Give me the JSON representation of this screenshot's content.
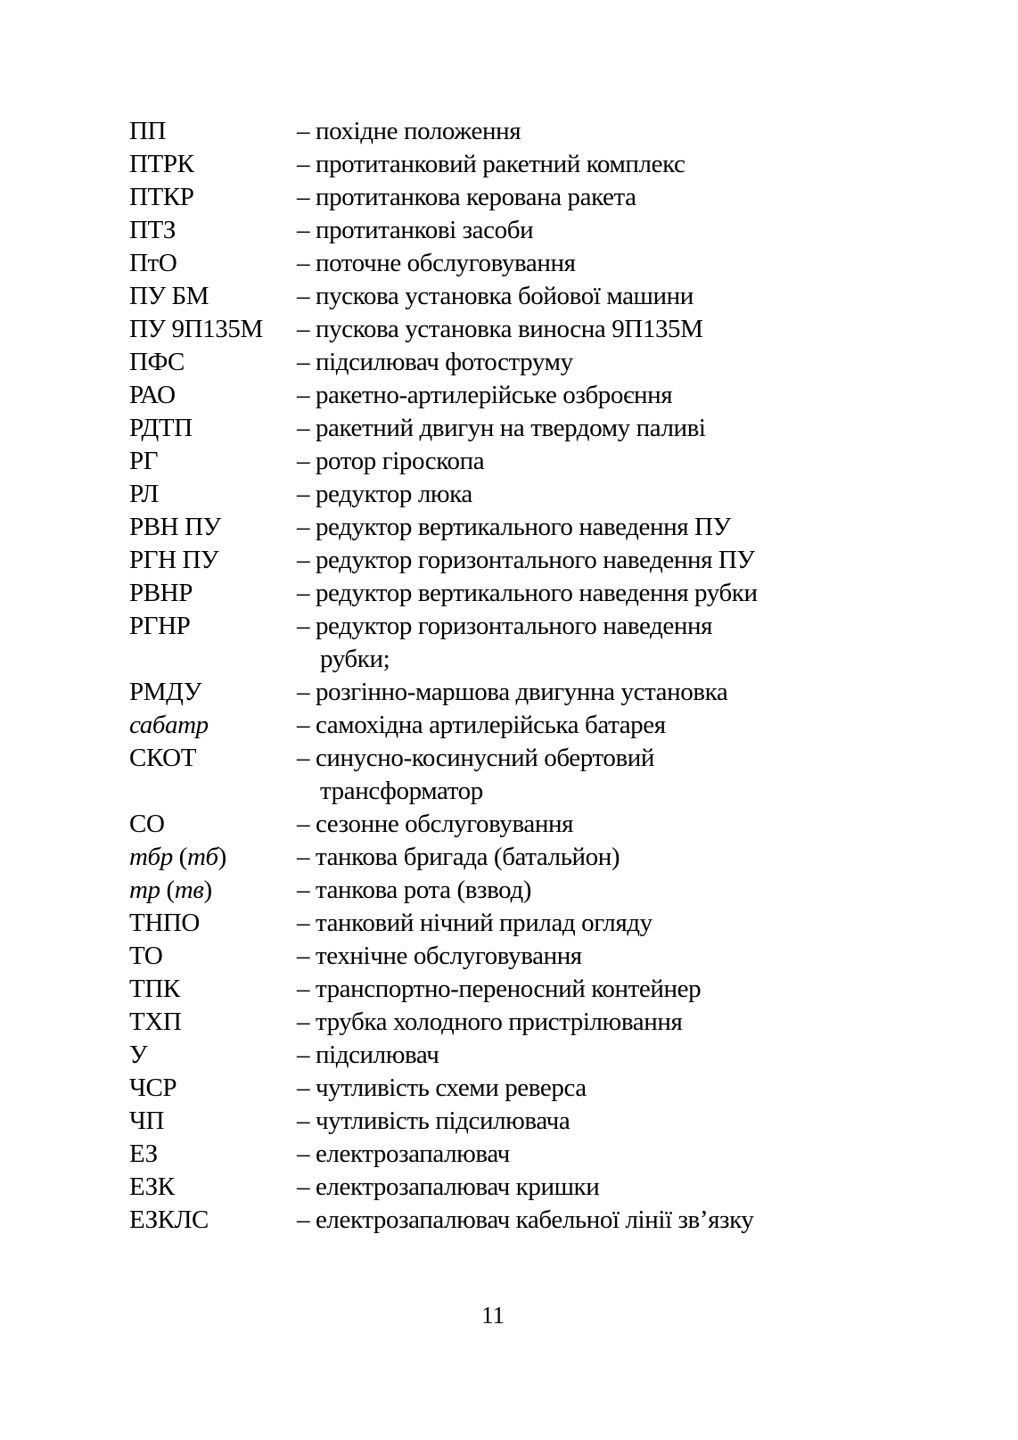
{
  "abbreviations": [
    {
      "abbr": [
        {
          "t": "ПП"
        }
      ],
      "def": [
        "– похідне положення"
      ]
    },
    {
      "abbr": [
        {
          "t": "ПТРК"
        }
      ],
      "def": [
        "– протитанковий ракетний комплекс"
      ]
    },
    {
      "abbr": [
        {
          "t": "ПТКР"
        }
      ],
      "def": [
        "– протитанкова керована ракета"
      ]
    },
    {
      "abbr": [
        {
          "t": "ПТЗ"
        }
      ],
      "def": [
        "– протитанкові засоби"
      ]
    },
    {
      "abbr": [
        {
          "t": "ПтО"
        }
      ],
      "def": [
        "– поточне обслуговування"
      ]
    },
    {
      "abbr": [
        {
          "t": "ПУ БМ"
        }
      ],
      "def": [
        "– пускова установка бойової машини"
      ]
    },
    {
      "abbr": [
        {
          "t": "ПУ 9П135М"
        }
      ],
      "def": [
        "– пускова установка виносна 9П135М"
      ]
    },
    {
      "abbr": [
        {
          "t": "ПФС"
        }
      ],
      "def": [
        "– підсилювач фотоструму"
      ]
    },
    {
      "abbr": [
        {
          "t": "РАО"
        }
      ],
      "def": [
        "– ракетно-артилерійське озброєння"
      ]
    },
    {
      "abbr": [
        {
          "t": "РДТП"
        }
      ],
      "def": [
        "– ракетний двигун на твердому паливі"
      ]
    },
    {
      "abbr": [
        {
          "t": "РГ"
        }
      ],
      "def": [
        "– ротор гіроскопа"
      ]
    },
    {
      "abbr": [
        {
          "t": "РЛ"
        }
      ],
      "def": [
        "– редуктор люка"
      ]
    },
    {
      "abbr": [
        {
          "t": "РВН ПУ"
        }
      ],
      "def": [
        "– редуктор вертикального наведення ПУ"
      ]
    },
    {
      "abbr": [
        {
          "t": "РГН ПУ"
        }
      ],
      "def": [
        "– редуктор горизонтального наведення ПУ"
      ]
    },
    {
      "abbr": [
        {
          "t": "РВНР"
        }
      ],
      "def": [
        "– редуктор вертикального наведення рубки"
      ]
    },
    {
      "abbr": [
        {
          "t": "РГНР"
        }
      ],
      "def": [
        "– редуктор горизонтального наведення",
        "рубки;"
      ]
    },
    {
      "abbr": [
        {
          "t": "РМДУ"
        }
      ],
      "def": [
        "– розгінно-маршова двигунна установка"
      ]
    },
    {
      "abbr": [
        {
          "t": "сабатр",
          "i": true
        }
      ],
      "def": [
        "– самохідна артилерійська батарея"
      ]
    },
    {
      "abbr": [
        {
          "t": "СКОТ"
        }
      ],
      "def": [
        "– синусно-косинусний обертовий",
        "трансформатор"
      ]
    },
    {
      "abbr": [
        {
          "t": "СО"
        }
      ],
      "def": [
        "– сезонне обслуговування"
      ]
    },
    {
      "abbr": [
        {
          "t": "тбр",
          "i": true
        },
        {
          "t": " ("
        },
        {
          "t": "тб",
          "i": true
        },
        {
          "t": ")"
        }
      ],
      "def": [
        "– танкова бригада (батальйон)"
      ]
    },
    {
      "abbr": [
        {
          "t": "тр",
          "i": true
        },
        {
          "t": " ("
        },
        {
          "t": "тв",
          "i": true
        },
        {
          "t": ")"
        }
      ],
      "def": [
        "– танкова рота (взвод)"
      ]
    },
    {
      "abbr": [
        {
          "t": "ТНПО"
        }
      ],
      "def": [
        "– танковий нічний прилад огляду"
      ]
    },
    {
      "abbr": [
        {
          "t": "ТО"
        }
      ],
      "def": [
        "– технічне обслуговування"
      ]
    },
    {
      "abbr": [
        {
          "t": "ТПК"
        }
      ],
      "def": [
        "– транспортно-переносний контейнер"
      ]
    },
    {
      "abbr": [
        {
          "t": "ТХП"
        }
      ],
      "def": [
        "– трубка холодного пристрілювання"
      ]
    },
    {
      "abbr": [
        {
          "t": "У"
        }
      ],
      "def": [
        "– підсилювач"
      ]
    },
    {
      "abbr": [
        {
          "t": "ЧСР"
        }
      ],
      "def": [
        "– чутливість схеми реверса"
      ]
    },
    {
      "abbr": [
        {
          "t": "ЧП"
        }
      ],
      "def": [
        "– чутливість підсилювача"
      ]
    },
    {
      "abbr": [
        {
          "t": "ЕЗ"
        }
      ],
      "def": [
        "– електрозапалювач"
      ]
    },
    {
      "abbr": [
        {
          "t": "ЕЗК"
        }
      ],
      "def": [
        "– електрозапалювач кришки"
      ]
    },
    {
      "abbr": [
        {
          "t": "ЕЗКЛС"
        }
      ],
      "def": [
        "– електрозапалювач кабельної лінії зв’язку"
      ]
    }
  ],
  "page_number": "11"
}
